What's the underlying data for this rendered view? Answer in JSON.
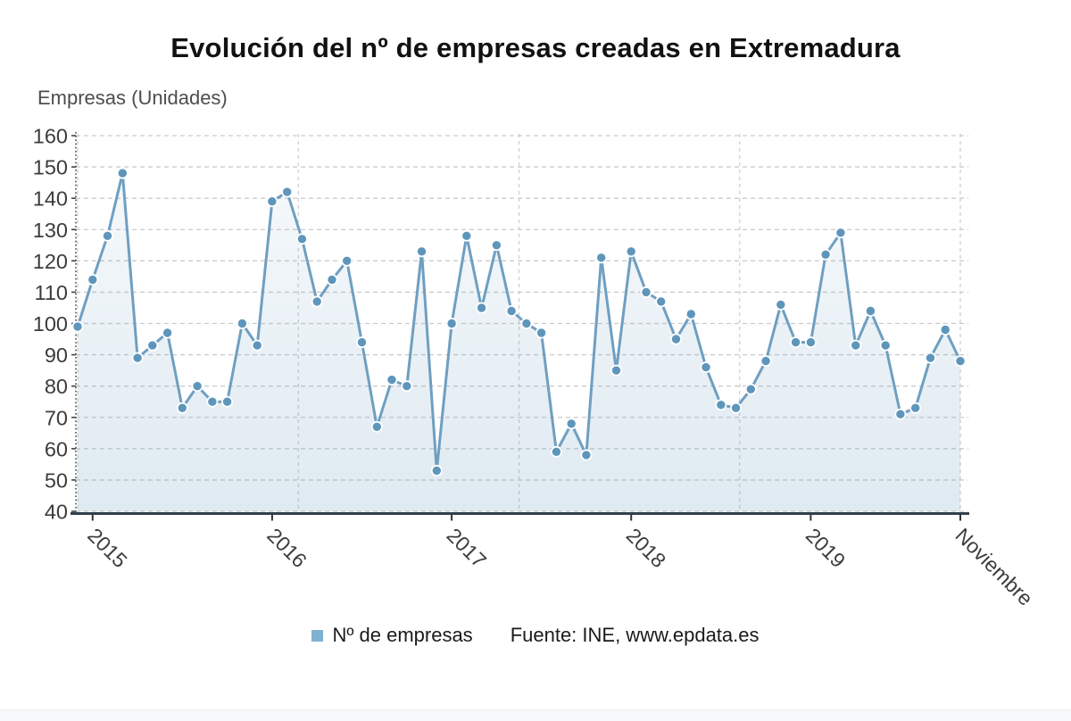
{
  "title": "Evolución del nº de empresas creadas en Extremadura",
  "y_axis_title": "Empresas (Unidades)",
  "legend": {
    "series_label": "Nº de empresas",
    "source_label": "Fuente: INE, www.epdata.es"
  },
  "colors": {
    "line": "#6f9fc1",
    "marker": "#5e96bb",
    "marker_halo": "#ffffff",
    "area_rgb": "93,149,186",
    "grid": "#cccccc",
    "axis": "#32404a",
    "tick_text": "#3c3c3c",
    "legend_swatch": "#7fb1d0"
  },
  "chart_data": {
    "type": "line",
    "title": "Evolución del nº de empresas creadas en Extremadura",
    "ylabel": "Empresas (Unidades)",
    "categories": [
      "2014-12",
      "2015-01",
      "2015-02",
      "2015-03",
      "2015-04",
      "2015-05",
      "2015-06",
      "2015-07",
      "2015-08",
      "2015-09",
      "2015-10",
      "2015-11",
      "2015-12",
      "2016-01",
      "2016-02",
      "2016-03",
      "2016-04",
      "2016-05",
      "2016-06",
      "2016-07",
      "2016-08",
      "2016-09",
      "2016-10",
      "2016-11",
      "2016-12",
      "2017-01",
      "2017-02",
      "2017-03",
      "2017-04",
      "2017-05",
      "2017-06",
      "2017-07",
      "2017-08",
      "2017-09",
      "2017-10",
      "2017-11",
      "2017-12",
      "2018-01",
      "2018-02",
      "2018-03",
      "2018-04",
      "2018-05",
      "2018-06",
      "2018-07",
      "2018-08",
      "2018-09",
      "2018-10",
      "2018-11",
      "2018-12",
      "2019-01",
      "2019-02",
      "2019-03",
      "2019-04",
      "2019-05",
      "2019-06",
      "2019-07",
      "2019-08",
      "2019-09",
      "2019-10",
      "2019-11"
    ],
    "series": [
      {
        "name": "Nº de empresas",
        "values": [
          99,
          114,
          128,
          148,
          89,
          93,
          97,
          73,
          80,
          75,
          75,
          100,
          93,
          139,
          142,
          127,
          107,
          114,
          120,
          94,
          67,
          82,
          80,
          123,
          53,
          100,
          128,
          105,
          125,
          104,
          100,
          97,
          59,
          68,
          58,
          121,
          85,
          123,
          110,
          107,
          95,
          103,
          86,
          74,
          73,
          79,
          88,
          106,
          94,
          94,
          122,
          129,
          93,
          104,
          93,
          71,
          73,
          89,
          98,
          88
        ]
      }
    ],
    "x_tick_labels": [
      "2015",
      "2016",
      "2017",
      "2018",
      "2019",
      "Noviembre"
    ],
    "x_tick_indices": [
      1,
      13,
      25,
      37,
      49,
      59
    ],
    "ylim": [
      40,
      160
    ],
    "ytick_step": 10,
    "grid": true,
    "legend_position": "bottom",
    "source": "Fuente: INE, www.epdata.es"
  }
}
